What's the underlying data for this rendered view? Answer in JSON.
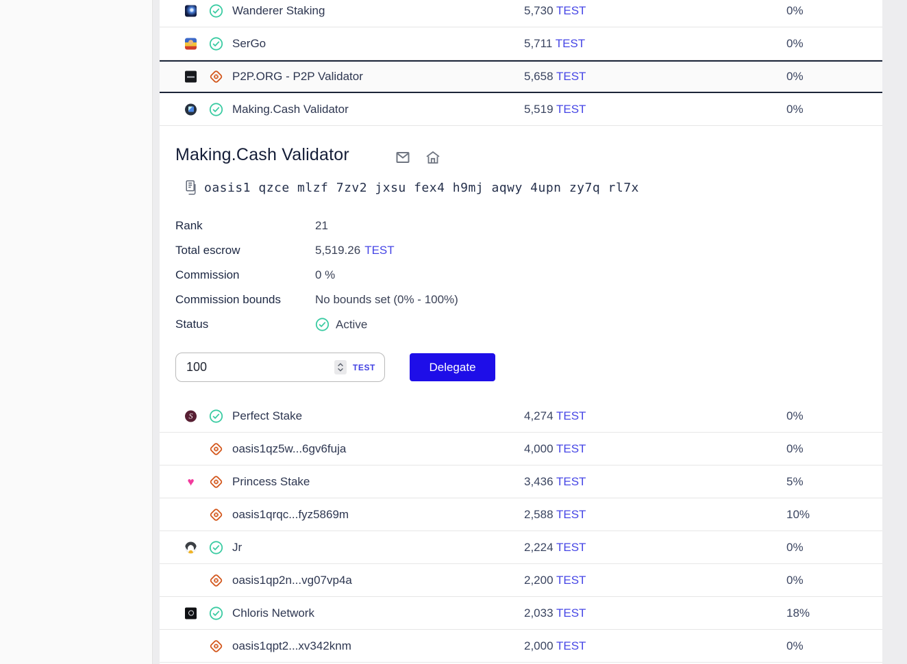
{
  "token": "TEST",
  "colors": {
    "accent_button": "#1e0ee8",
    "token_link": "#4545e5",
    "verified_green": "#3acba2",
    "unknown_orange": "#d3571c",
    "dark_navy": "#141d37",
    "highlight_border": "#1b2438"
  },
  "top_table": {
    "rows": [
      {
        "avatar": "galaxy",
        "status": "verified",
        "name": "Wanderer Staking",
        "escrow": "5,730",
        "fee": "0%",
        "highlighted": false
      },
      {
        "avatar": "person",
        "status": "verified",
        "name": "SerGo",
        "escrow": "5,711",
        "fee": "0%",
        "highlighted": false
      },
      {
        "avatar": "p2p",
        "status": "unknown",
        "name": "P2P.ORG - P2P Validator",
        "escrow": "5,658",
        "fee": "0%",
        "highlighted": true
      },
      {
        "avatar": "cube",
        "status": "verified",
        "name": "Making.Cash Validator",
        "escrow": "5,519",
        "fee": "0%",
        "highlighted": false
      }
    ]
  },
  "details": {
    "title": "Making.Cash Validator",
    "address": "oasis1 qzce mlzf 7zv2 jxsu fex4 h9mj aqwy 4upn zy7q rl7x",
    "fields": [
      {
        "label": "Rank",
        "value": "21"
      },
      {
        "label": "Total escrow",
        "value": "5,519.26",
        "suffix": "TEST"
      },
      {
        "label": "Commission",
        "value": "0 %"
      },
      {
        "label": "Commission bounds",
        "value": "No bounds set (0% - 100%)"
      },
      {
        "label": "Status",
        "value": "Active",
        "icon": "verified"
      }
    ]
  },
  "form": {
    "amount": "100",
    "token_label": "TEST",
    "button_label": "Delegate"
  },
  "bottom_table": {
    "rows": [
      {
        "avatar": "wine",
        "status": "verified",
        "name": "Perfect Stake",
        "escrow": "4,274",
        "fee": "0%",
        "highlighted": false
      },
      {
        "avatar": "none",
        "status": "unknown",
        "name": "oasis1qz5w...6gv6fuja",
        "escrow": "4,000",
        "fee": "0%",
        "highlighted": false
      },
      {
        "avatar": "heart",
        "status": "unknown",
        "name": "Princess Stake",
        "escrow": "3,436",
        "fee": "5%",
        "highlighted": false
      },
      {
        "avatar": "none",
        "status": "unknown",
        "name": "oasis1qrqc...fyz5869m",
        "escrow": "2,588",
        "fee": "10%",
        "highlighted": false
      },
      {
        "avatar": "penguin",
        "status": "verified",
        "name": "Jr",
        "escrow": "2,224",
        "fee": "0%",
        "highlighted": false
      },
      {
        "avatar": "none",
        "status": "unknown",
        "name": "oasis1qp2n...vg07vp4a",
        "escrow": "2,200",
        "fee": "0%",
        "highlighted": false
      },
      {
        "avatar": "chloris",
        "status": "verified",
        "name": "Chloris Network",
        "escrow": "2,033",
        "fee": "18%",
        "highlighted": false
      },
      {
        "avatar": "none",
        "status": "unknown",
        "name": "oasis1qpt2...xv342knm",
        "escrow": "2,000",
        "fee": "0%",
        "highlighted": false
      }
    ]
  }
}
